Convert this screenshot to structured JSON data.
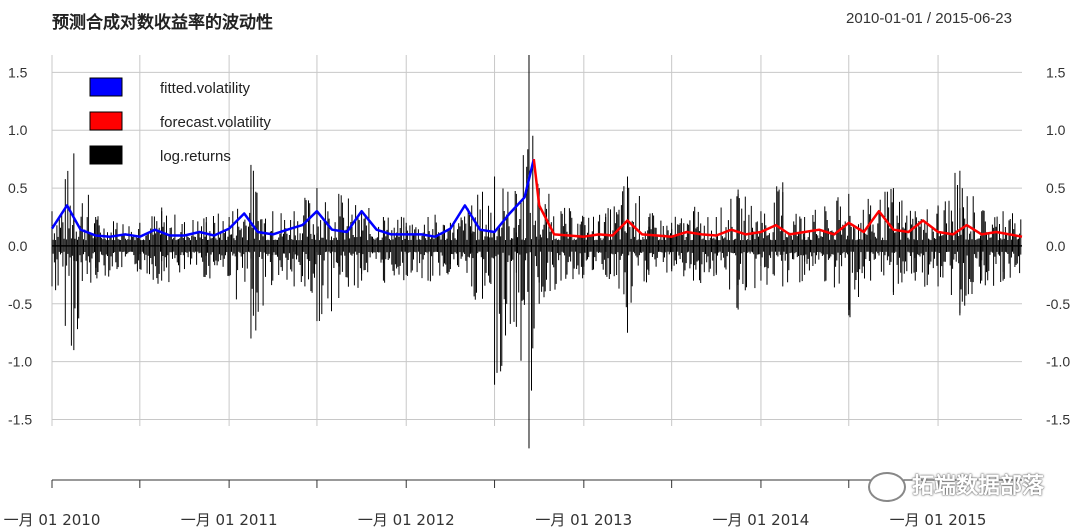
{
  "title": "预测合成对数收益率的波动性",
  "date_range": "2010-01-01 / 2015-06-23",
  "watermark": "拓端数据部落",
  "colors": {
    "fitted": "#0000ff",
    "forecast": "#ff0000",
    "returns": "#000000",
    "grid": "#c8c8c8"
  },
  "chart_data": {
    "type": "line",
    "ylim": [
      -1.85,
      1.65
    ],
    "y_ticks": [
      1.5,
      1.0,
      0.5,
      0.0,
      -0.5,
      -1.0,
      -1.5
    ],
    "y_tick_labels": [
      "1.5",
      "1.0",
      "0.5",
      "0.0",
      "-0.5",
      "-1.0",
      "-1.5"
    ],
    "x_start": "2010-01-01",
    "x_end": "2015-06-23",
    "x_ticks": [
      "2010-01-01",
      "2010-07-01",
      "2011-01-01",
      "2011-07-01",
      "2012-01-01",
      "2012-07-01",
      "2013-01-01",
      "2013-07-01",
      "2014-01-01",
      "2014-07-01",
      "2015-01-01"
    ],
    "x_tick_labels": [
      "一月 01 2010",
      "一月 01 2011",
      "一月 01 2012",
      "一月 01 2013",
      "一月 01 2014",
      "一月 01 2015"
    ],
    "legend": {
      "position": "top-left",
      "entries": [
        {
          "name": "fitted.volatility",
          "color": "#0000ff"
        },
        {
          "name": "forecast.volatility",
          "color": "#ff0000"
        },
        {
          "name": "log.returns",
          "color": "#000000"
        }
      ]
    },
    "series": [
      {
        "name": "fitted.volatility",
        "color": "#0000ff",
        "x": [
          "2010-01-01",
          "2010-02-01",
          "2010-03-01",
          "2010-04-01",
          "2010-05-01",
          "2010-06-01",
          "2010-07-01",
          "2010-08-01",
          "2010-09-01",
          "2010-10-01",
          "2010-11-01",
          "2010-12-01",
          "2011-01-01",
          "2011-02-01",
          "2011-03-01",
          "2011-04-01",
          "2011-05-01",
          "2011-06-01",
          "2011-07-01",
          "2011-08-01",
          "2011-09-01",
          "2011-10-01",
          "2011-11-01",
          "2011-12-01",
          "2012-01-01",
          "2012-02-01",
          "2012-03-01",
          "2012-04-01",
          "2012-05-01",
          "2012-06-01",
          "2012-07-01",
          "2012-08-01",
          "2012-09-01",
          "2012-09-20"
        ],
        "y": [
          0.15,
          0.35,
          0.14,
          0.09,
          0.08,
          0.1,
          0.08,
          0.14,
          0.09,
          0.09,
          0.12,
          0.09,
          0.15,
          0.28,
          0.12,
          0.1,
          0.14,
          0.18,
          0.3,
          0.14,
          0.12,
          0.3,
          0.14,
          0.1,
          0.1,
          0.1,
          0.08,
          0.15,
          0.35,
          0.14,
          0.12,
          0.28,
          0.42,
          0.75
        ]
      },
      {
        "name": "forecast.volatility",
        "color": "#ff0000",
        "x": [
          "2012-09-20",
          "2012-10-01",
          "2012-11-01",
          "2012-12-01",
          "2013-01-01",
          "2013-02-01",
          "2013-03-01",
          "2013-04-01",
          "2013-05-01",
          "2013-06-01",
          "2013-07-01",
          "2013-08-01",
          "2013-09-01",
          "2013-10-01",
          "2013-11-01",
          "2013-12-01",
          "2014-01-01",
          "2014-02-01",
          "2014-03-01",
          "2014-04-01",
          "2014-05-01",
          "2014-06-01",
          "2014-07-01",
          "2014-08-01",
          "2014-09-01",
          "2014-10-01",
          "2014-11-01",
          "2014-12-01",
          "2015-01-01",
          "2015-02-01",
          "2015-03-01",
          "2015-04-01",
          "2015-05-01",
          "2015-06-23"
        ],
        "y": [
          0.75,
          0.35,
          0.1,
          0.09,
          0.08,
          0.1,
          0.09,
          0.22,
          0.1,
          0.09,
          0.08,
          0.12,
          0.1,
          0.09,
          0.14,
          0.1,
          0.12,
          0.18,
          0.1,
          0.12,
          0.14,
          0.1,
          0.2,
          0.12,
          0.3,
          0.14,
          0.12,
          0.22,
          0.12,
          0.1,
          0.18,
          0.1,
          0.12,
          0.08
        ]
      },
      {
        "name": "log.returns",
        "color": "#000000",
        "type": "spikes",
        "x": [
          "2010-01-01",
          "2010-02-15",
          "2010-04-01",
          "2010-05-15",
          "2010-07-01",
          "2010-08-15",
          "2010-10-01",
          "2010-11-15",
          "2011-01-01",
          "2011-02-15",
          "2011-04-01",
          "2011-05-15",
          "2011-07-01",
          "2011-08-15",
          "2011-10-01",
          "2011-11-15",
          "2012-01-01",
          "2012-02-15",
          "2012-04-01",
          "2012-05-15",
          "2012-07-01",
          "2012-08-15",
          "2012-09-10",
          "2012-10-01",
          "2012-11-15",
          "2013-01-01",
          "2013-02-15",
          "2013-04-01",
          "2013-05-15",
          "2013-07-01",
          "2013-08-15",
          "2013-10-01",
          "2013-11-15",
          "2014-01-01",
          "2014-02-15",
          "2014-04-01",
          "2014-05-15",
          "2014-07-01",
          "2014-08-15",
          "2014-10-01",
          "2014-11-15",
          "2015-01-01",
          "2015-02-15",
          "2015-04-01",
          "2015-05-15",
          "2015-06-23"
        ],
        "high": [
          0.3,
          0.8,
          0.25,
          0.2,
          0.2,
          0.3,
          0.2,
          0.25,
          0.25,
          0.7,
          0.3,
          0.3,
          0.5,
          0.45,
          0.3,
          0.25,
          0.2,
          0.25,
          0.2,
          0.35,
          0.6,
          0.45,
          1.65,
          0.5,
          0.3,
          0.25,
          0.25,
          0.6,
          0.25,
          0.2,
          0.3,
          0.25,
          0.45,
          0.3,
          0.55,
          0.25,
          0.3,
          0.45,
          0.35,
          0.5,
          0.3,
          0.35,
          0.65,
          0.3,
          0.3,
          0.25
        ],
        "low": [
          -0.35,
          -0.9,
          -0.25,
          -0.2,
          -0.2,
          -0.3,
          -0.2,
          -0.25,
          -0.25,
          -0.8,
          -0.3,
          -0.35,
          -0.65,
          -0.45,
          -0.3,
          -0.3,
          -0.25,
          -0.3,
          -0.2,
          -0.35,
          -1.2,
          -0.7,
          -1.75,
          -0.5,
          -0.3,
          -0.25,
          -0.25,
          -0.75,
          -0.25,
          -0.2,
          -0.3,
          -0.25,
          -0.55,
          -0.3,
          -0.35,
          -0.25,
          -0.3,
          -0.6,
          -0.3,
          -0.4,
          -0.3,
          -0.35,
          -0.6,
          -0.3,
          -0.3,
          -0.25
        ]
      }
    ]
  }
}
